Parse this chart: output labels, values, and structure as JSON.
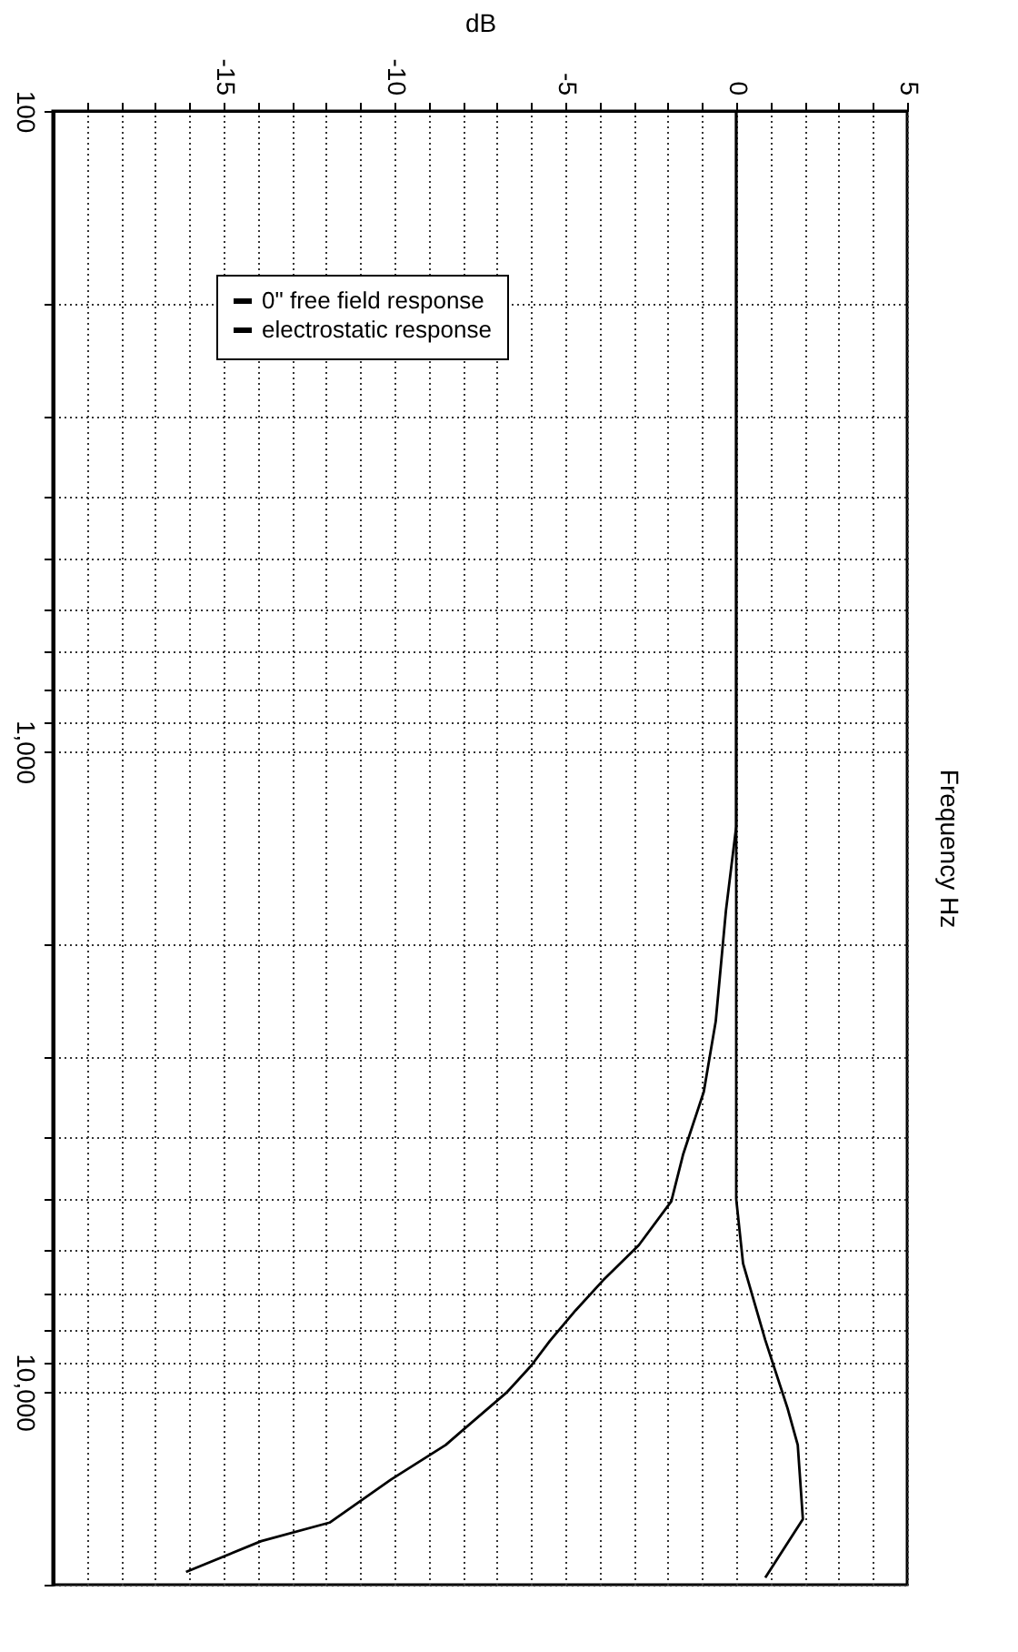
{
  "chart_data": {
    "type": "line",
    "xlabel": "dB",
    "ylabel": "Frequency Hz",
    "log": "y",
    "grid": true,
    "legend": "top left",
    "line_style": "solid",
    "xlim": [
      -20,
      5
    ],
    "ylim": [
      20000,
      100
    ],
    "xticks": [
      {
        "value": -19,
        "label": null
      },
      {
        "value": -18,
        "label": null
      },
      {
        "value": -17,
        "label": null
      },
      {
        "value": -16,
        "label": null
      },
      -15,
      {
        "value": -14,
        "label": null
      },
      {
        "value": -13,
        "label": null
      },
      {
        "value": -12,
        "label": null
      },
      {
        "value": -11,
        "label": null
      },
      -10,
      {
        "value": -9,
        "label": null
      },
      {
        "value": -8,
        "label": null
      },
      {
        "value": -7,
        "label": null
      },
      {
        "value": -6,
        "label": null
      },
      -5,
      {
        "value": -4,
        "label": null
      },
      {
        "value": -3,
        "label": null
      },
      {
        "value": -2,
        "label": null
      },
      {
        "value": -1,
        "label": null
      },
      0,
      {
        "value": 1,
        "label": null
      },
      {
        "value": 2,
        "label": null
      },
      {
        "value": 3,
        "label": null
      },
      {
        "value": 4,
        "label": null
      },
      5
    ],
    "yticks": [
      {
        "value": 100,
        "label": "100"
      },
      {
        "value": 200,
        "label": null
      },
      {
        "value": 300,
        "label": null
      },
      {
        "value": 400,
        "label": null
      },
      {
        "value": 500,
        "label": null
      },
      {
        "value": 600,
        "label": null
      },
      {
        "value": 700,
        "label": null
      },
      {
        "value": 800,
        "label": null
      },
      {
        "value": 900,
        "label": null
      },
      {
        "value": 1000,
        "label": "1,000"
      },
      {
        "value": 2000,
        "label": null
      },
      {
        "value": 3000,
        "label": null
      },
      {
        "value": 4000,
        "label": null
      },
      {
        "value": 5000,
        "label": null
      },
      {
        "value": 6000,
        "label": null
      },
      {
        "value": 7000,
        "label": null
      },
      {
        "value": 8000,
        "label": null
      },
      {
        "value": 9000,
        "label": null
      },
      {
        "value": 10000,
        "label": "10,000"
      },
      {
        "value": 20000,
        "label": null
      }
    ],
    "series": [
      {
        "name": "0\" free field response",
        "color": "#000000",
        "x": [
          0,
          0,
          0,
          0,
          0.2,
          0.85,
          1.5,
          1.8,
          1.95,
          0.85
        ],
        "values": [
          100,
          1000,
          3000,
          5000,
          6300,
          8300,
          10600,
          12100,
          15800,
          19500
        ]
      },
      {
        "name": "electrostatic response",
        "color": "#000000",
        "x": [
          0,
          0,
          0,
          -0.3,
          -0.6,
          -0.95,
          -1.55,
          -1.9,
          -2.85,
          -3.9,
          -4.7,
          -5.45,
          -6,
          -6.7,
          -8.5,
          -10.1,
          -11.9,
          -13.9,
          -16.1
        ],
        "values": [
          100,
          1000,
          1310,
          1770,
          2640,
          3400,
          4250,
          5040,
          5900,
          6700,
          7460,
          8320,
          9100,
          10000,
          12100,
          13700,
          16000,
          17100,
          19100
        ]
      }
    ]
  }
}
